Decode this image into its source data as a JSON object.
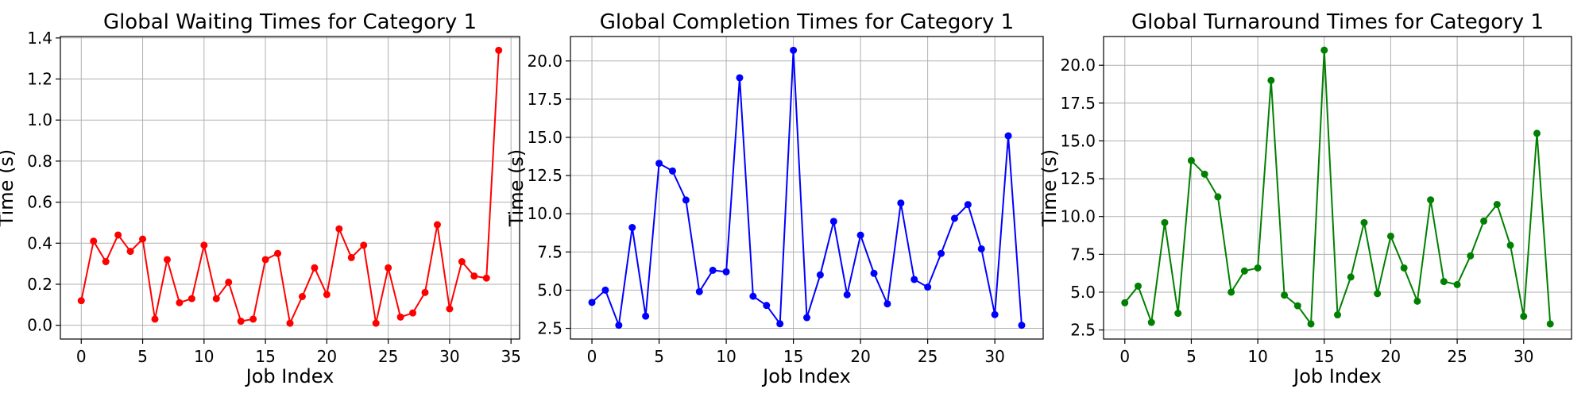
{
  "chart_data": [
    {
      "type": "line",
      "title": "Global Waiting Times for Category 1",
      "xlabel": "Job Index",
      "ylabel": "Time (s)",
      "xlim": [
        -1.7,
        35.7
      ],
      "ylim": [
        -0.067,
        1.407
      ],
      "xticks": [
        0,
        5,
        10,
        15,
        20,
        25,
        30,
        35
      ],
      "yticks": [
        0.0,
        0.2,
        0.4,
        0.6,
        0.8,
        1.0,
        1.2,
        1.4
      ],
      "ytick_labels": [
        "0.0",
        "0.2",
        "0.4",
        "0.6",
        "0.8",
        "1.0",
        "1.2",
        "1.4"
      ],
      "grid": true,
      "color": "#ff0000",
      "series": [
        {
          "values": [
            0.12,
            0.41,
            0.31,
            0.44,
            0.36,
            0.42,
            0.03,
            0.32,
            0.11,
            0.13,
            0.39,
            0.13,
            0.21,
            0.02,
            0.03,
            0.32,
            0.35,
            0.01,
            0.14,
            0.28,
            0.15,
            0.47,
            0.33,
            0.39,
            0.01,
            0.28,
            0.04,
            0.06,
            0.16,
            0.49,
            0.08,
            0.31,
            0.24,
            0.23,
            1.34
          ]
        }
      ]
    },
    {
      "type": "line",
      "title": "Global Completion Times for Category 1",
      "xlabel": "Job Index",
      "ylabel": "Time (s)",
      "xlim": [
        -1.6,
        33.6
      ],
      "ylim": [
        1.8,
        21.6
      ],
      "xticks": [
        0,
        5,
        10,
        15,
        20,
        25,
        30
      ],
      "yticks": [
        2.5,
        5.0,
        7.5,
        10.0,
        12.5,
        15.0,
        17.5,
        20.0
      ],
      "ytick_labels": [
        "2.5",
        "5.0",
        "7.5",
        "10.0",
        "12.5",
        "15.0",
        "17.5",
        "20.0"
      ],
      "grid": true,
      "color": "#0000ff",
      "series": [
        {
          "values": [
            4.2,
            5.0,
            2.7,
            9.1,
            3.3,
            13.3,
            12.8,
            10.9,
            4.9,
            6.3,
            6.2,
            18.9,
            4.6,
            4.0,
            2.8,
            20.7,
            3.2,
            6.0,
            9.5,
            4.7,
            8.6,
            6.1,
            4.1,
            10.7,
            5.7,
            5.2,
            7.4,
            9.7,
            10.6,
            7.7,
            3.4,
            15.1,
            2.7
          ]
        }
      ]
    },
    {
      "type": "line",
      "title": "Global Turnaround Times for Category 1",
      "xlabel": "Job Index",
      "ylabel": "Time (s)",
      "xlim": [
        -1.6,
        33.6
      ],
      "ylim": [
        1.9,
        21.9
      ],
      "xticks": [
        0,
        5,
        10,
        15,
        20,
        25,
        30
      ],
      "yticks": [
        2.5,
        5.0,
        7.5,
        10.0,
        12.5,
        15.0,
        17.5,
        20.0
      ],
      "ytick_labels": [
        "2.5",
        "5.0",
        "7.5",
        "10.0",
        "12.5",
        "15.0",
        "17.5",
        "20.0"
      ],
      "grid": true,
      "color": "#008000",
      "series": [
        {
          "values": [
            4.3,
            5.4,
            3.0,
            9.6,
            3.6,
            13.7,
            12.8,
            11.3,
            5.0,
            6.4,
            6.6,
            19.0,
            4.8,
            4.1,
            2.9,
            21.0,
            3.5,
            6.0,
            9.6,
            4.9,
            8.7,
            6.6,
            4.4,
            11.1,
            5.7,
            5.5,
            7.4,
            9.7,
            10.8,
            8.1,
            3.4,
            15.5,
            2.9
          ]
        }
      ]
    }
  ]
}
